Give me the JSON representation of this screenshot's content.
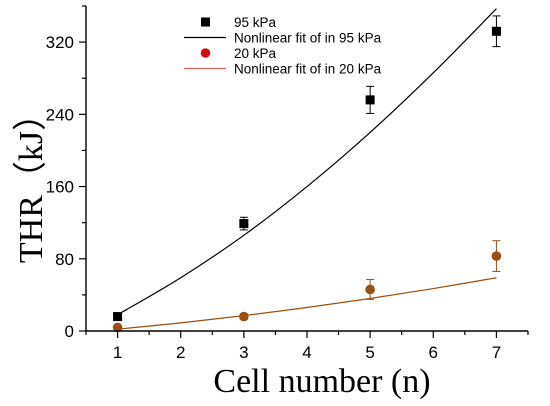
{
  "chart_data": {
    "type": "scatter",
    "xlabel": "Cell number (n)",
    "ylabel": "THR（kJ）",
    "xlim": [
      0.5,
      7.5
    ],
    "ylim": [
      0,
      360
    ],
    "xticks": [
      "1",
      "2",
      "3",
      "4",
      "5",
      "6",
      "7"
    ],
    "yticks": [
      "0",
      "80",
      "160",
      "240",
      "320"
    ],
    "legend_position": "top-left inside",
    "series": [
      {
        "name": "95 kPa",
        "marker": "square",
        "color": "#000000",
        "x": [
          1,
          3,
          5,
          7
        ],
        "y": [
          16,
          119,
          256,
          332
        ],
        "err": [
          3,
          7,
          15,
          17
        ]
      },
      {
        "name": "Nonlinear fit of in 95 kPa",
        "kind": "line",
        "color": "#000000",
        "x": [
          1,
          2,
          3,
          4,
          5,
          6,
          7
        ],
        "y": [
          18,
          59,
          106,
          160,
          220,
          286,
          357
        ]
      },
      {
        "name": "20 kPa",
        "marker": "circle",
        "color": "#d01010",
        "display_color": "#9a4e12",
        "x": [
          1,
          3,
          5,
          7
        ],
        "y": [
          4,
          16,
          46,
          83
        ],
        "err": [
          2,
          3,
          11,
          17
        ]
      },
      {
        "name": "Nonlinear fit of in 20 kPa",
        "kind": "line",
        "color": "#e06060",
        "display_color": "#9a4e12",
        "x": [
          1,
          2,
          3,
          4,
          5,
          6,
          7
        ],
        "y": [
          2,
          9,
          17,
          26,
          36,
          47,
          59
        ]
      }
    ]
  }
}
